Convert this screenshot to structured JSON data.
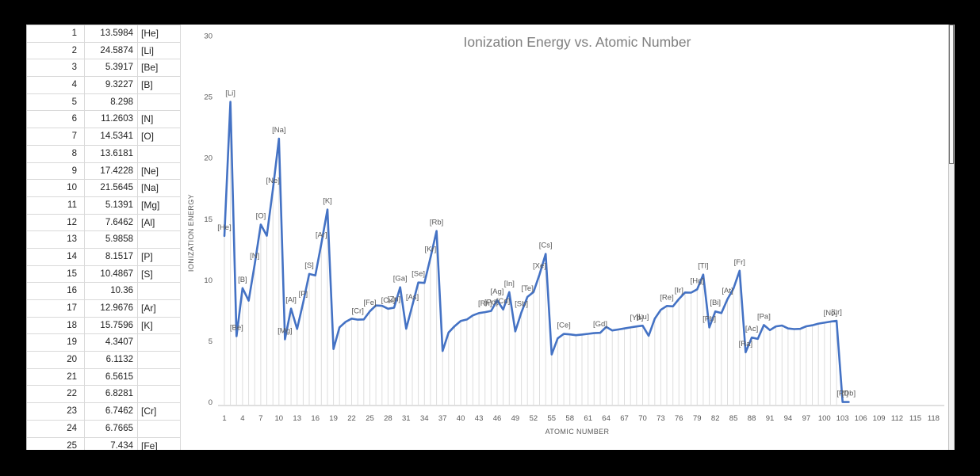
{
  "spreadsheet": {
    "columns": [
      "atomic_number",
      "ionization_energy",
      "label"
    ],
    "rows": [
      {
        "atomic_number": "1",
        "ionization_energy": "13.5984",
        "label": "[He]"
      },
      {
        "atomic_number": "2",
        "ionization_energy": "24.5874",
        "label": "[Li]"
      },
      {
        "atomic_number": "3",
        "ionization_energy": "5.3917",
        "label": "[Be]"
      },
      {
        "atomic_number": "4",
        "ionization_energy": "9.3227",
        "label": "[B]"
      },
      {
        "atomic_number": "5",
        "ionization_energy": "8.298",
        "label": ""
      },
      {
        "atomic_number": "6",
        "ionization_energy": "11.2603",
        "label": "[N]"
      },
      {
        "atomic_number": "7",
        "ionization_energy": "14.5341",
        "label": "[O]"
      },
      {
        "atomic_number": "8",
        "ionization_energy": "13.6181",
        "label": ""
      },
      {
        "atomic_number": "9",
        "ionization_energy": "17.4228",
        "label": "[Ne]"
      },
      {
        "atomic_number": "10",
        "ionization_energy": "21.5645",
        "label": "[Na]"
      },
      {
        "atomic_number": "11",
        "ionization_energy": "5.1391",
        "label": "[Mg]"
      },
      {
        "atomic_number": "12",
        "ionization_energy": "7.6462",
        "label": "[Al]"
      },
      {
        "atomic_number": "13",
        "ionization_energy": "5.9858",
        "label": ""
      },
      {
        "atomic_number": "14",
        "ionization_energy": "8.1517",
        "label": "[P]"
      },
      {
        "atomic_number": "15",
        "ionization_energy": "10.4867",
        "label": "[S]"
      },
      {
        "atomic_number": "16",
        "ionization_energy": "10.36",
        "label": ""
      },
      {
        "atomic_number": "17",
        "ionization_energy": "12.9676",
        "label": "[Ar]"
      },
      {
        "atomic_number": "18",
        "ionization_energy": "15.7596",
        "label": "[K]"
      },
      {
        "atomic_number": "19",
        "ionization_energy": "4.3407",
        "label": ""
      },
      {
        "atomic_number": "20",
        "ionization_energy": "6.1132",
        "label": ""
      },
      {
        "atomic_number": "21",
        "ionization_energy": "6.5615",
        "label": ""
      },
      {
        "atomic_number": "22",
        "ionization_energy": "6.8281",
        "label": ""
      },
      {
        "atomic_number": "23",
        "ionization_energy": "6.7462",
        "label": "[Cr]"
      },
      {
        "atomic_number": "24",
        "ionization_energy": "6.7665",
        "label": ""
      },
      {
        "atomic_number": "25",
        "ionization_energy": "7.434",
        "label": "[Fe]"
      }
    ]
  },
  "chart_data": {
    "type": "line",
    "title": "Ionization Energy vs. Atomic Number",
    "xlabel": "ATOMIC NUMBER",
    "ylabel": "IONIZATION ENERGY",
    "xlim": [
      1,
      118
    ],
    "ylim": [
      0,
      30
    ],
    "x_ticks": [
      1,
      4,
      7,
      10,
      13,
      16,
      19,
      22,
      25,
      28,
      31,
      34,
      37,
      40,
      43,
      46,
      49,
      52,
      55,
      58,
      61,
      64,
      67,
      70,
      73,
      76,
      79,
      82,
      85,
      88,
      91,
      94,
      97,
      100,
      103,
      106,
      109,
      112,
      115,
      118
    ],
    "y_ticks": [
      0,
      5,
      10,
      15,
      20,
      25,
      30
    ],
    "grid": false,
    "drop_lines": true,
    "legend": false,
    "series": [
      {
        "name": "Ionization Energy",
        "color": "#4472C4",
        "x_start": 1,
        "x_step": 1,
        "values": [
          13.5984,
          24.5874,
          5.3917,
          9.3227,
          8.298,
          11.2603,
          14.5341,
          13.6181,
          17.4228,
          21.5645,
          5.1391,
          7.6462,
          5.9858,
          8.1517,
          10.4867,
          10.36,
          12.9676,
          15.7596,
          4.3407,
          6.1132,
          6.5615,
          6.8281,
          6.7462,
          6.7665,
          7.434,
          7.9024,
          7.881,
          7.6398,
          7.7264,
          9.3942,
          5.9993,
          7.8994,
          9.7886,
          9.7524,
          11.8138,
          13.9996,
          4.1771,
          5.6949,
          6.2173,
          6.6339,
          6.7589,
          7.0924,
          7.28,
          7.3605,
          7.4589,
          8.3369,
          7.5762,
          8.9938,
          5.7864,
          7.3439,
          8.6084,
          9.0096,
          10.4513,
          12.1298,
          3.8939,
          5.2117,
          5.5769,
          5.5387,
          5.473,
          5.525,
          5.582,
          5.6437,
          5.6704,
          6.1498,
          5.8638,
          5.9389,
          6.0215,
          6.1077,
          6.1843,
          6.2542,
          5.4259,
          6.8251,
          7.5496,
          7.864,
          7.8335,
          8.4382,
          8.967,
          8.9587,
          9.2255,
          10.4375,
          6.1082,
          7.4167,
          7.2856,
          8.417,
          9.3,
          10.7485,
          4.0727,
          5.2784,
          5.17,
          6.3067,
          5.89,
          6.1941,
          6.2657,
          6.0262,
          5.9738,
          5.9915,
          6.1979,
          6.2817,
          6.42,
          6.5,
          6.58,
          6.65,
          0,
          0
        ]
      }
    ],
    "point_labels": {
      "1": "[He]",
      "2": "[Li]",
      "3": "[Be]",
      "4": "[B]",
      "6": "[N]",
      "7": "[O]",
      "9": "[Ne]",
      "10": "[Na]",
      "11": "[Mg]",
      "12": "[Al]",
      "14": "[P]",
      "15": "[S]",
      "17": "[Ar]",
      "18": "[K]",
      "23": "[Cr]",
      "25": "[Fe]",
      "28": "[Cu]",
      "29": "[Zn]",
      "30": "[Ga]",
      "32": "[As]",
      "33": "[Se]",
      "35": "[Kr]",
      "36": "[Rb]",
      "44": "[Rh]",
      "45": "[Pd]",
      "46": "[Ag]",
      "47": "[Cd]",
      "48": "[In]",
      "50": "[Sb]",
      "51": "[Te]",
      "53": "[Xe]",
      "54": "[Cs]",
      "57": "[Ce]",
      "63": "[Gd]",
      "69": "[Yb]",
      "70": "[Lu]",
      "74": "[Re]",
      "76": "[Ir]",
      "79": "[Hg]",
      "80": "[Tl]",
      "81": "[Pb]",
      "82": "[Bi]",
      "84": "[At]",
      "86": "[Fr]",
      "87": "[Ra]",
      "88": "[Ac]",
      "90": "[Pa]",
      "101": "[No]",
      "102": "[Lr]",
      "103": "[Rf]",
      "104": "[Db]"
    }
  },
  "colors": {
    "series_line": "#4472C4",
    "axis_text": "#595959",
    "title_text": "#7F7F7F",
    "drop_line": "#DEDEDE",
    "axis_line": "#BFBFBF",
    "gridline": "#D9D9D9"
  }
}
